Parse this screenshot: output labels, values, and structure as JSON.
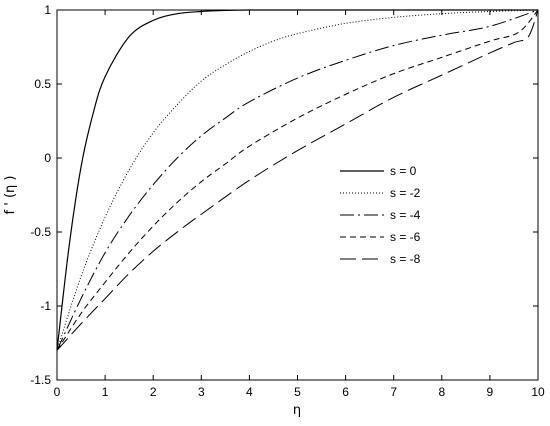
{
  "chart_data": {
    "type": "line",
    "title": "",
    "xlabel": "η",
    "ylabel": "f ' (η )",
    "xlim": [
      0,
      10
    ],
    "ylim": [
      -1.5,
      1
    ],
    "xticks": [
      "0",
      "1",
      "2",
      "3",
      "4",
      "5",
      "6",
      "7",
      "8",
      "9",
      "10"
    ],
    "yticks": [
      "1",
      "0.5",
      "0",
      "-0.5",
      "-1",
      "-1.5"
    ],
    "grid": false,
    "legend_position": "center-right",
    "series": [
      {
        "name": "s = 0",
        "style": "solid",
        "x": [
          0,
          0.25,
          0.5,
          0.75,
          1,
          1.5,
          2,
          2.5,
          3,
          3.5,
          4,
          5,
          6,
          7,
          8,
          9,
          10
        ],
        "y": [
          -1.3,
          -0.6,
          -0.06,
          0.3,
          0.55,
          0.82,
          0.93,
          0.975,
          0.99,
          0.997,
          1,
          1,
          1,
          1,
          1,
          1,
          1
        ]
      },
      {
        "name": "s = -2",
        "style": "dotted",
        "x": [
          0,
          0.5,
          1,
          1.5,
          2,
          2.5,
          3,
          3.5,
          4,
          4.5,
          5,
          6,
          7,
          8,
          9,
          10
        ],
        "y": [
          -1.3,
          -0.8,
          -0.4,
          -0.08,
          0.17,
          0.36,
          0.52,
          0.63,
          0.72,
          0.79,
          0.84,
          0.91,
          0.95,
          0.975,
          0.99,
          1
        ]
      },
      {
        "name": "s = -4",
        "style": "dash-dot",
        "x": [
          0,
          0.5,
          1,
          1.5,
          2,
          2.5,
          3,
          3.5,
          4,
          5,
          6,
          7,
          8,
          9,
          10
        ],
        "y": [
          -1.3,
          -0.95,
          -0.64,
          -0.39,
          -0.18,
          0,
          0.15,
          0.27,
          0.38,
          0.54,
          0.66,
          0.76,
          0.83,
          0.89,
          1
        ]
      },
      {
        "name": "s = -6",
        "style": "dashed",
        "x": [
          0,
          0.5,
          1,
          1.5,
          2,
          2.5,
          3,
          3.5,
          4,
          5,
          6,
          7,
          8,
          9,
          9.6,
          10
        ],
        "y": [
          -1.3,
          -1.05,
          -0.84,
          -0.64,
          -0.46,
          -0.3,
          -0.16,
          -0.04,
          0.08,
          0.27,
          0.43,
          0.57,
          0.68,
          0.79,
          0.85,
          1
        ]
      },
      {
        "name": "s = -8",
        "style": "longdash",
        "x": [
          0,
          0.5,
          1,
          1.5,
          2,
          2.5,
          3,
          4,
          5,
          6,
          7,
          8,
          9,
          9.5,
          9.8,
          10
        ],
        "y": [
          -1.3,
          -1.12,
          -0.95,
          -0.78,
          -0.63,
          -0.5,
          -0.38,
          -0.15,
          0.05,
          0.23,
          0.41,
          0.56,
          0.71,
          0.78,
          0.82,
          1
        ]
      }
    ]
  }
}
